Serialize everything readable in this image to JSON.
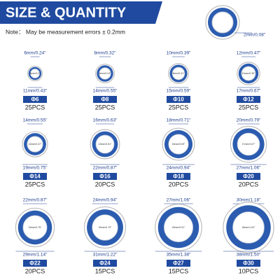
{
  "header": {
    "title": "SIZE & QUANTITY",
    "note": "Note： May be measurement errors ± 0.2mm",
    "thickness": "2mm/0.08\""
  },
  "items": [
    {
      "size": "Φ6",
      "inner": "6mm/0.24\"",
      "center": "5mm/0.2\"",
      "outer": "11mm/0.43\"",
      "qty": "25PCS"
    },
    {
      "size": "Φ8",
      "inner": "8mm/0.32\"",
      "center": "6mm/0.24\"",
      "outer": "14mm/0.55\"",
      "qty": "25PCS"
    },
    {
      "size": "Φ10",
      "inner": "10mm/0.39\"",
      "center": "8mm/0.31\"",
      "outer": "15mm/0.59\"",
      "qty": "25PCS"
    },
    {
      "size": "Φ12",
      "inner": "12mm/0.47\"",
      "center": "10mm/0.39\"",
      "outer": "17mm/0.67\"",
      "qty": "25PCS"
    },
    {
      "size": "Φ14",
      "inner": "14mm/0.55\"",
      "center": "12mm/0.47\"",
      "outer": "19mm/0.75\"",
      "qty": "25PCS"
    },
    {
      "size": "Φ16",
      "inner": "16mm/0.63\"",
      "center": "13mm/0.51\"",
      "outer": "22mm/0.87\"",
      "qty": "20PCS"
    },
    {
      "size": "Φ18",
      "inner": "18mm/0.71\"",
      "center": "15mm/0.59\"",
      "outer": "24mm/0.94\"",
      "qty": "20PCS"
    },
    {
      "size": "Φ20",
      "inner": "20mm/0.79\"",
      "center": "17mm/0.67\"",
      "outer": "27mm/1.06\"",
      "qty": "20PCS"
    },
    {
      "size": "Φ22",
      "inner": "22mm/0.87\"",
      "center": "19mm/0.75\"",
      "outer": "29mm/1.14\"",
      "qty": "20PCS"
    },
    {
      "size": "Φ24",
      "inner": "24mm/0.94\"",
      "center": "20mm/0.79\"",
      "outer": "31mm/1.22\"",
      "qty": "15PCS"
    },
    {
      "size": "Φ27",
      "inner": "27mm/1.06\"",
      "center": "23mm/0.91\"",
      "outer": "35mm/1.38\"",
      "qty": "15PCS"
    },
    {
      "size": "Φ30",
      "inner": "30mm/1.18\"",
      "center": "26mm/1.02\"",
      "outer": "38mm/1.50\"",
      "qty": "10PCS"
    }
  ]
}
